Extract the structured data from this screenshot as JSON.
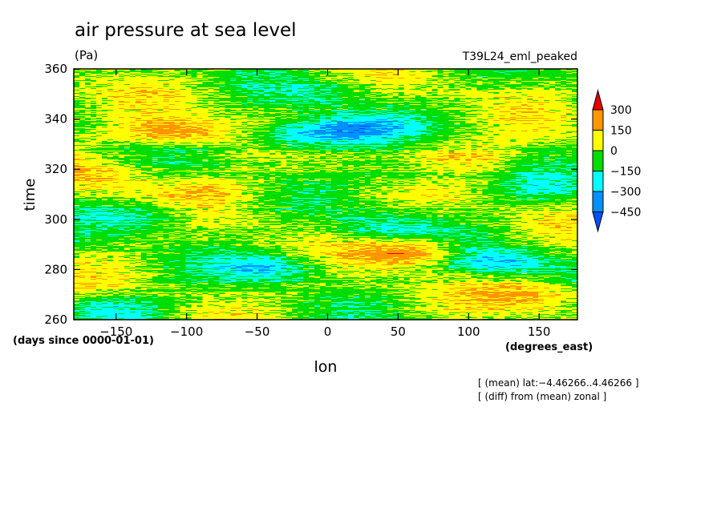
{
  "chart_data": {
    "type": "heatmap",
    "title": "air pressure at sea level",
    "units": "(Pa)",
    "subtitle_right": "T39L24_eml_peaked",
    "xlabel": "lon",
    "x_units": "(degrees_east)",
    "ylabel": "time",
    "y_units": "(days since 0000-01-01)",
    "xlim": [
      -180,
      177.2
    ],
    "ylim": [
      260,
      360
    ],
    "x_ticks": [
      -150,
      -100,
      -50,
      0,
      50,
      100,
      150
    ],
    "x_tick_labels": [
      "−150",
      "−100",
      "−50",
      "0",
      "50",
      "100",
      "150"
    ],
    "y_ticks": [
      260,
      280,
      300,
      320,
      340,
      360
    ],
    "y_tick_labels": [
      "260",
      "280",
      "300",
      "320",
      "340",
      "360"
    ],
    "colorbar": {
      "levels": [
        -450,
        -300,
        -150,
        0,
        150,
        300
      ],
      "labels": [
        "300",
        "150",
        "0",
        "−150",
        "−300",
        "−450"
      ],
      "colors": [
        "#e80000",
        "#ff9600",
        "#ffff00",
        "#00dd00",
        "#00ffff",
        "#0090ff",
        "#0050ff"
      ]
    },
    "notes": [
      "[ (mean) lat:−4.46266..4.46266 ]",
      "[ (diff) from (mean) zonal ]"
    ],
    "field_regions": [
      {
        "lon": -20,
        "time": 333,
        "value": -300,
        "desc": "cyan patch"
      },
      {
        "lon": 20,
        "time": 336,
        "value": -300
      },
      {
        "lon": -110,
        "time": 335,
        "value": 250
      },
      {
        "lon": 60,
        "time": 287,
        "value": 280
      },
      {
        "lon": 120,
        "time": 283,
        "value": -280
      },
      {
        "lon": -40,
        "time": 281,
        "value": -250
      },
      {
        "lon": -130,
        "time": 301,
        "value": -200
      },
      {
        "lon": 40,
        "time": 297,
        "value": -180
      },
      {
        "lon": 100,
        "time": 325,
        "value": 150
      },
      {
        "lon": -160,
        "time": 317,
        "value": 120
      },
      {
        "lon": 150,
        "time": 270,
        "value": 160
      },
      {
        "lon": -150,
        "time": 265,
        "value": -200
      },
      {
        "lon": 0,
        "time": 350,
        "value": -120
      },
      {
        "lon": 60,
        "time": 318,
        "value": -130
      },
      {
        "lon": -80,
        "time": 312,
        "value": 100
      },
      {
        "lon": 150,
        "time": 312,
        "value": -150
      }
    ]
  }
}
